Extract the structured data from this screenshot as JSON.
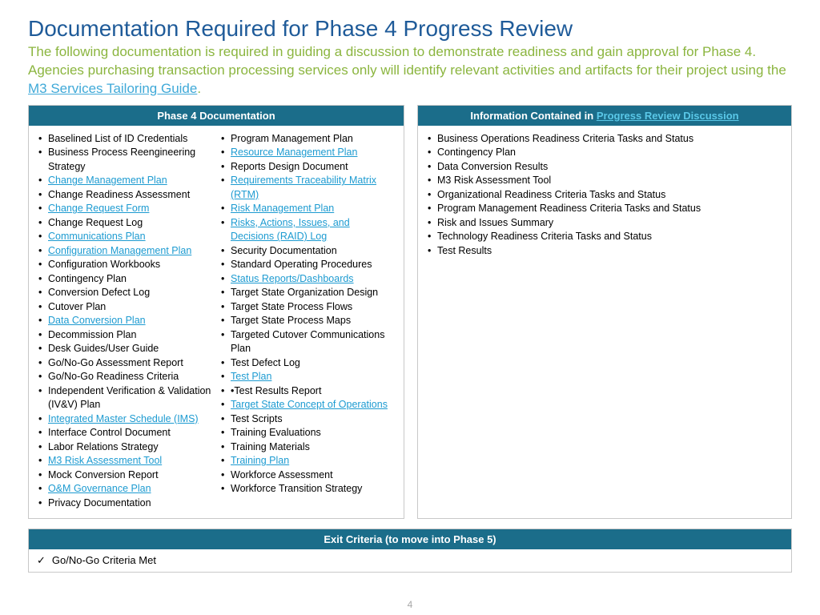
{
  "title": "Documentation Required for Phase 4 Progress Review",
  "intro_pre": "The following documentation is required in guiding a discussion to demonstrate readiness and gain approval for Phase 4. Agencies purchasing transaction processing services only will identify relevant activities and artifacts for their project using the ",
  "intro_link": "M3 Services Tailoring Guide",
  "intro_post": ".",
  "left_header": "Phase 4 Documentation",
  "right_header_pre": "Information Contained in ",
  "right_header_link": "Progress Review Discussion",
  "colA": [
    {
      "t": "Baselined List of ID Credentials",
      "l": false
    },
    {
      "t": "Business Process Reengineering Strategy",
      "l": false
    },
    {
      "t": "Change Management Plan ",
      "l": true
    },
    {
      "t": "Change Readiness Assessment",
      "l": false
    },
    {
      "t": "Change Request Form",
      "l": true
    },
    {
      "t": "Change Request Log",
      "l": false
    },
    {
      "t": "Communications Plan",
      "l": true
    },
    {
      "t": "Configuration Management Plan",
      "l": true
    },
    {
      "t": "Configuration Workbooks",
      "l": false
    },
    {
      "t": "Contingency Plan",
      "l": false
    },
    {
      "t": "Conversion Defect Log",
      "l": false
    },
    {
      "t": "Cutover Plan",
      "l": false
    },
    {
      "t": "Data Conversion Plan ",
      "l": true
    },
    {
      "t": "Decommission Plan",
      "l": false
    },
    {
      "t": "Desk Guides/User Guide",
      "l": false
    },
    {
      "t": "Go/No-Go Assessment Report",
      "l": false
    },
    {
      "t": "Go/No-Go Readiness Criteria",
      "l": false
    },
    {
      "t": "Independent Verification & Validation (IV&V) Plan",
      "l": false
    },
    {
      "t": "Integrated Master Schedule (IMS)",
      "l": true
    },
    {
      "t": "Interface Control Document",
      "l": false
    },
    {
      "t": "Labor Relations Strategy",
      "l": false
    },
    {
      "t": "M3 Risk Assessment Tool",
      "l": true
    },
    {
      "t": "Mock Conversion Report",
      "l": false
    },
    {
      "t": "O&M Governance Plan ",
      "l": true
    },
    {
      "t": "Privacy Documentation",
      "l": false
    }
  ],
  "colB": [
    {
      "t": "Program Management Plan",
      "l": false
    },
    {
      "t": "Resource Management Plan",
      "l": true
    },
    {
      "t": "Reports Design Document",
      "l": false
    },
    {
      "t": "Requirements Traceability Matrix (RTM) ",
      "l": true
    },
    {
      "t": "Risk Management Plan",
      "l": true
    },
    {
      "t": "Risks, Actions, Issues, and Decisions (RAID) Log ",
      "l": true
    },
    {
      "t": "Security Documentation",
      "l": false
    },
    {
      "t": "Standard Operating Procedures",
      "l": false
    },
    {
      "t": "Status Reports/Dashboards",
      "l": true
    },
    {
      "t": "Target State Organization Design",
      "l": false
    },
    {
      "t": "Target State Process Flows",
      "l": false
    },
    {
      "t": "Target State Process Maps",
      "l": false
    },
    {
      "t": "Targeted Cutover Communications Plan",
      "l": false
    },
    {
      "t": "Test Defect Log",
      "l": false
    },
    {
      "t": "Test Plan",
      "l": true
    },
    {
      "t": "•Test Results Report",
      "l": false
    },
    {
      "t": "Target State Concept of Operations",
      "l": true
    },
    {
      "t": "Test Scripts",
      "l": false
    },
    {
      "t": "Training Evaluations",
      "l": false
    },
    {
      "t": "Training Materials",
      "l": false
    },
    {
      "t": "Training Plan ",
      "l": true
    },
    {
      "t": "Workforce Assessment",
      "l": false
    },
    {
      "t": "Workforce Transition Strategy",
      "l": false
    }
  ],
  "right_items": [
    "Business Operations Readiness Criteria Tasks and Status",
    "Contingency Plan",
    "Data Conversion Results",
    "M3 Risk Assessment Tool",
    "Organizational Readiness Criteria Tasks and Status",
    "Program Management Readiness Criteria Tasks and Status",
    "Risk and Issues Summary",
    "Technology Readiness Criteria Tasks and Status",
    "Test Results"
  ],
  "exit_header": "Exit Criteria (to move into Phase 5)",
  "exit_item": "Go/No-Go Criteria Met",
  "page_number": "4",
  "colors": {
    "title": "#1f5b99",
    "intro": "#8bb53f",
    "link": "#1d9bd1",
    "header_bg": "#1b6d8a",
    "header_link": "#5ac8e8",
    "border": "#c8c8c8"
  }
}
